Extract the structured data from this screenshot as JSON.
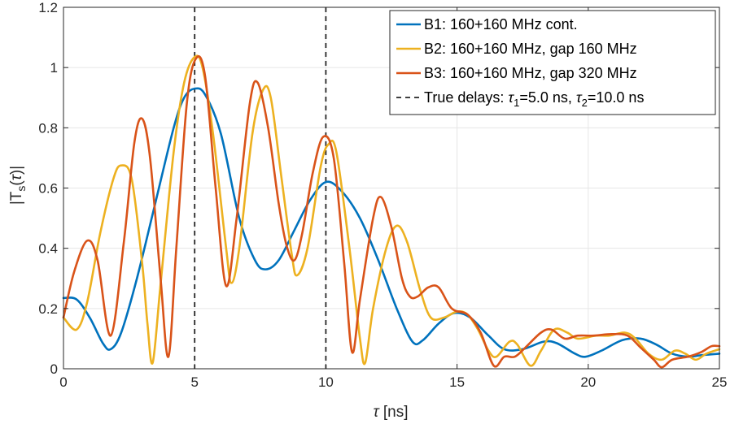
{
  "chart_data": {
    "type": "line",
    "title": "",
    "xlabel_symbol": "τ",
    "xlabel_unit": " [ns]",
    "ylabel_prefix": "|T",
    "ylabel_sub": "s",
    "ylabel_mid": "(",
    "ylabel_symbol": "τ",
    "ylabel_suffix": ")|",
    "xlim": [
      0,
      25
    ],
    "ylim": [
      0,
      1.2
    ],
    "xticks": [
      0,
      5,
      10,
      15,
      20,
      25
    ],
    "xtick_labels": [
      "0",
      "5",
      "10",
      "15",
      "20",
      "25"
    ],
    "yticks": [
      0,
      0.2,
      0.4,
      0.6,
      0.8,
      1,
      1.2
    ],
    "ytick_labels": [
      "0",
      "0.2",
      "0.4",
      "0.6",
      "0.8",
      "1",
      "1.2"
    ],
    "grid": true,
    "legend_position": "top-right",
    "true_delays": [
      5.0,
      10.0
    ],
    "true_delays_label": {
      "prefix": "True delays: ",
      "tau": "τ",
      "sub1": "1",
      "val1": "=5.0 ns, ",
      "sub2": "2",
      "val2": "=10.0 ns"
    },
    "series": [
      {
        "name": "B1: 160+160 MHz cont.",
        "color": "#0072BD",
        "points": [
          [
            0,
            0.235
          ],
          [
            0.5,
            0.23
          ],
          [
            1,
            0.17
          ],
          [
            1.5,
            0.085
          ],
          [
            1.8,
            0.065
          ],
          [
            2.2,
            0.12
          ],
          [
            2.8,
            0.3
          ],
          [
            3.5,
            0.55
          ],
          [
            4.2,
            0.8
          ],
          [
            4.6,
            0.9
          ],
          [
            5,
            0.93
          ],
          [
            5.4,
            0.91
          ],
          [
            6,
            0.78
          ],
          [
            6.7,
            0.5
          ],
          [
            7.3,
            0.36
          ],
          [
            7.7,
            0.33
          ],
          [
            8.2,
            0.36
          ],
          [
            8.8,
            0.46
          ],
          [
            9.4,
            0.56
          ],
          [
            10,
            0.62
          ],
          [
            10.6,
            0.59
          ],
          [
            11.3,
            0.5
          ],
          [
            12,
            0.36
          ],
          [
            12.7,
            0.2
          ],
          [
            13.3,
            0.09
          ],
          [
            13.7,
            0.095
          ],
          [
            14.3,
            0.15
          ],
          [
            14.9,
            0.185
          ],
          [
            15.5,
            0.17
          ],
          [
            16.2,
            0.11
          ],
          [
            16.8,
            0.065
          ],
          [
            17.5,
            0.065
          ],
          [
            18.3,
            0.09
          ],
          [
            18.8,
            0.085
          ],
          [
            19.5,
            0.05
          ],
          [
            19.9,
            0.04
          ],
          [
            20.5,
            0.06
          ],
          [
            21.3,
            0.095
          ],
          [
            22,
            0.1
          ],
          [
            22.6,
            0.08
          ],
          [
            23.2,
            0.05
          ],
          [
            23.8,
            0.04
          ],
          [
            24.3,
            0.045
          ],
          [
            25,
            0.05
          ]
        ]
      },
      {
        "name": "B2: 160+160 MHz, gap 160 MHz",
        "color": "#EDB120",
        "points": [
          [
            0,
            0.17
          ],
          [
            0.5,
            0.13
          ],
          [
            0.9,
            0.22
          ],
          [
            1.4,
            0.45
          ],
          [
            1.9,
            0.63
          ],
          [
            2.2,
            0.675
          ],
          [
            2.6,
            0.63
          ],
          [
            3,
            0.35
          ],
          [
            3.2,
            0.15
          ],
          [
            3.4,
            0.02
          ],
          [
            3.7,
            0.28
          ],
          [
            4.2,
            0.72
          ],
          [
            4.6,
            0.95
          ],
          [
            5,
            1.035
          ],
          [
            5.3,
            1.0
          ],
          [
            5.7,
            0.78
          ],
          [
            6.2,
            0.4
          ],
          [
            6.4,
            0.285
          ],
          [
            6.7,
            0.4
          ],
          [
            7.2,
            0.78
          ],
          [
            7.6,
            0.925
          ],
          [
            7.9,
            0.9
          ],
          [
            8.3,
            0.64
          ],
          [
            8.7,
            0.38
          ],
          [
            8.9,
            0.31
          ],
          [
            9.3,
            0.4
          ],
          [
            9.8,
            0.67
          ],
          [
            10.1,
            0.745
          ],
          [
            10.4,
            0.72
          ],
          [
            10.9,
            0.4
          ],
          [
            11.3,
            0.1
          ],
          [
            11.5,
            0.02
          ],
          [
            11.8,
            0.2
          ],
          [
            12.3,
            0.4
          ],
          [
            12.7,
            0.475
          ],
          [
            13.1,
            0.42
          ],
          [
            13.6,
            0.26
          ],
          [
            14,
            0.17
          ],
          [
            14.5,
            0.17
          ],
          [
            15,
            0.19
          ],
          [
            15.4,
            0.18
          ],
          [
            15.8,
            0.13
          ],
          [
            16.2,
            0.06
          ],
          [
            16.5,
            0.04
          ],
          [
            17,
            0.09
          ],
          [
            17.3,
            0.08
          ],
          [
            17.8,
            0.01
          ],
          [
            18.2,
            0.06
          ],
          [
            18.7,
            0.13
          ],
          [
            19.2,
            0.12
          ],
          [
            19.6,
            0.1
          ],
          [
            20.3,
            0.11
          ],
          [
            20.8,
            0.11
          ],
          [
            21.4,
            0.12
          ],
          [
            21.8,
            0.1
          ],
          [
            22.3,
            0.05
          ],
          [
            22.8,
            0.03
          ],
          [
            23.3,
            0.06
          ],
          [
            23.7,
            0.05
          ],
          [
            24.1,
            0.03
          ],
          [
            24.5,
            0.05
          ],
          [
            25,
            0.065
          ]
        ]
      },
      {
        "name": "B3: 160+160 MHz, gap 320 MHz",
        "color": "#D95319",
        "points": [
          [
            0,
            0.17
          ],
          [
            0.4,
            0.32
          ],
          [
            0.9,
            0.425
          ],
          [
            1.3,
            0.36
          ],
          [
            1.8,
            0.11
          ],
          [
            2.3,
            0.42
          ],
          [
            2.7,
            0.75
          ],
          [
            3,
            0.83
          ],
          [
            3.3,
            0.7
          ],
          [
            3.7,
            0.3
          ],
          [
            4,
            0.04
          ],
          [
            4.3,
            0.4
          ],
          [
            4.7,
            0.88
          ],
          [
            5.05,
            1.03
          ],
          [
            5.4,
            0.97
          ],
          [
            5.8,
            0.6
          ],
          [
            6.2,
            0.275
          ],
          [
            6.6,
            0.5
          ],
          [
            7.1,
            0.88
          ],
          [
            7.4,
            0.95
          ],
          [
            7.8,
            0.8
          ],
          [
            8.2,
            0.55
          ],
          [
            8.5,
            0.41
          ],
          [
            8.8,
            0.36
          ],
          [
            9.1,
            0.45
          ],
          [
            9.5,
            0.65
          ],
          [
            9.9,
            0.77
          ],
          [
            10.3,
            0.7
          ],
          [
            10.7,
            0.35
          ],
          [
            11,
            0.055
          ],
          [
            11.3,
            0.23
          ],
          [
            11.8,
            0.5
          ],
          [
            12.1,
            0.57
          ],
          [
            12.5,
            0.47
          ],
          [
            12.9,
            0.3
          ],
          [
            13.2,
            0.24
          ],
          [
            13.5,
            0.24
          ],
          [
            13.9,
            0.27
          ],
          [
            14.3,
            0.27
          ],
          [
            14.8,
            0.2
          ],
          [
            15.4,
            0.18
          ],
          [
            15.9,
            0.12
          ],
          [
            16.4,
            0.01
          ],
          [
            16.8,
            0.04
          ],
          [
            17.2,
            0.04
          ],
          [
            17.6,
            0.07
          ],
          [
            18.2,
            0.12
          ],
          [
            18.6,
            0.13
          ],
          [
            19.1,
            0.1
          ],
          [
            19.6,
            0.11
          ],
          [
            20.2,
            0.11
          ],
          [
            20.9,
            0.115
          ],
          [
            21.5,
            0.11
          ],
          [
            22,
            0.07
          ],
          [
            22.5,
            0.03
          ],
          [
            22.8,
            0.005
          ],
          [
            23.2,
            0.03
          ],
          [
            23.8,
            0.04
          ],
          [
            24.3,
            0.055
          ],
          [
            24.7,
            0.075
          ],
          [
            25,
            0.075
          ]
        ]
      }
    ]
  }
}
